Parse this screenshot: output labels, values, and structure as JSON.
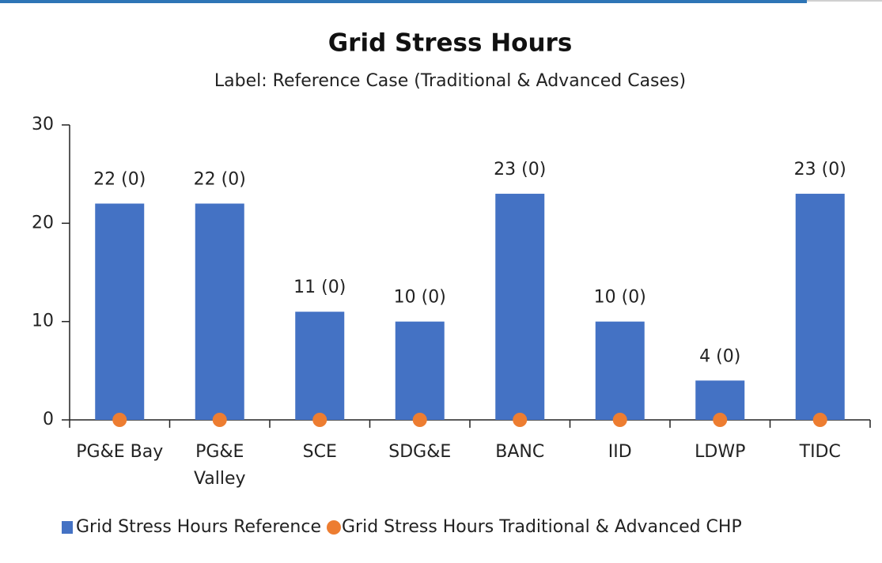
{
  "chart_data": {
    "type": "bar",
    "title": "Grid Stress Hours",
    "subtitle": "Label: Reference Case (Traditional & Advanced Cases)",
    "categories": [
      "PG&E Bay",
      "PG&E Valley",
      "SCE",
      "SDG&E",
      "BANC",
      "IID",
      "LDWP",
      "TIDC"
    ],
    "series": [
      {
        "name": "Grid Stress Hours Reference",
        "type": "bar",
        "color": "#4472c4",
        "values": [
          22,
          22,
          11,
          10,
          23,
          10,
          4,
          23
        ],
        "value_labels": [
          "22 (0)",
          "22 (0)",
          "11 (0)",
          "10 (0)",
          "23 (0)",
          "10 (0)",
          "4 (0)",
          "23 (0)"
        ]
      },
      {
        "name": "Grid Stress Hours Traditional & Advanced CHP",
        "type": "scatter",
        "color": "#ed7d31",
        "values": [
          0,
          0,
          0,
          0,
          0,
          0,
          0,
          0
        ]
      }
    ],
    "ylim": [
      0,
      30
    ],
    "yticks": [
      0,
      10,
      20,
      30
    ],
    "grid": false,
    "legend": "bottom"
  }
}
